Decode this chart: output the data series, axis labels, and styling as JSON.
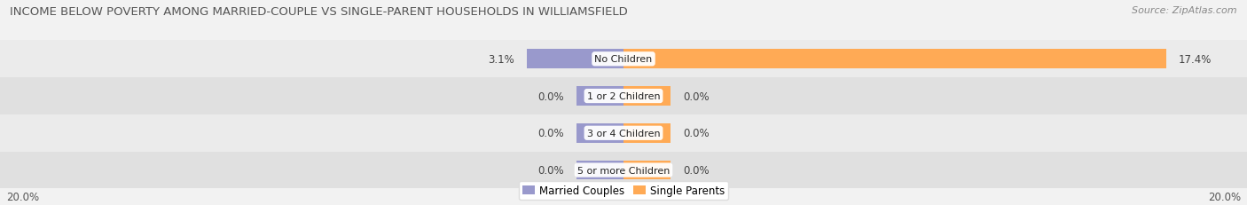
{
  "title": "INCOME BELOW POVERTY AMONG MARRIED-COUPLE VS SINGLE-PARENT HOUSEHOLDS IN WILLIAMSFIELD",
  "source": "Source: ZipAtlas.com",
  "categories": [
    "No Children",
    "1 or 2 Children",
    "3 or 4 Children",
    "5 or more Children"
  ],
  "married_values": [
    3.1,
    0.0,
    0.0,
    0.0
  ],
  "single_values": [
    17.4,
    0.0,
    0.0,
    0.0
  ],
  "married_color": "#9999cc",
  "single_color": "#ffaa55",
  "axis_max": 20.0,
  "bg_color": "#f2f2f2",
  "row_color_odd": "#ebebeb",
  "row_color_even": "#e0e0e0",
  "title_fontsize": 9.5,
  "source_fontsize": 8,
  "label_fontsize": 8.5,
  "category_fontsize": 8,
  "legend_fontsize": 8.5,
  "axis_label_fontsize": 8.5,
  "zero_stub": 1.5
}
